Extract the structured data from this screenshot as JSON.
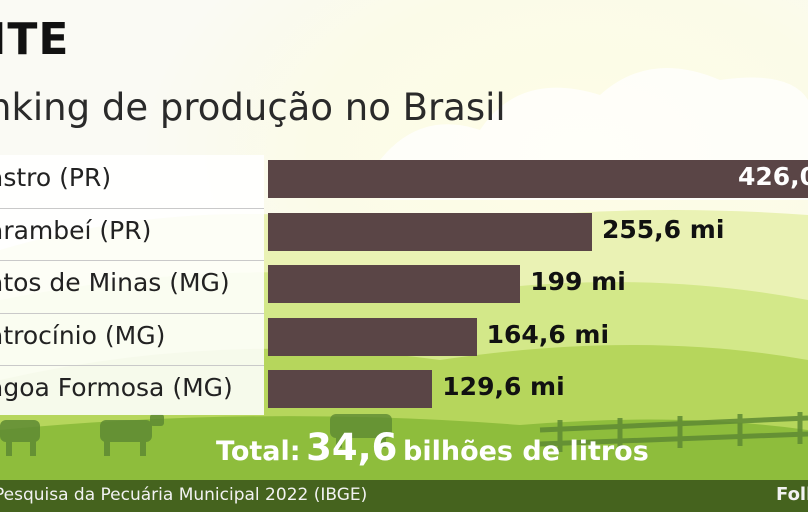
{
  "title": "ITE",
  "subtitle": "nking de produção no Brasil",
  "chart_data": {
    "type": "bar",
    "orientation": "horizontal",
    "categories": [
      "astro (PR)",
      "arambeí (PR)",
      "atos de Minas (MG)",
      "atrocínio (MG)",
      "agoa Formosa (MG)"
    ],
    "values": [
      426.0,
      255.6,
      199,
      164.6,
      129.6
    ],
    "value_labels": [
      "426,0",
      "255,6 mi",
      "199 mi",
      "164,6 mi",
      "129,6 mi"
    ],
    "unit": "mi",
    "xlim": [
      0,
      426.0
    ],
    "bar_color": "#5a4546"
  },
  "total": {
    "label": "Total:",
    "value": "34,6",
    "unit": "bilhões de litros"
  },
  "footer": {
    "source": "Pesquisa da Pecuária Municipal 2022 (IBGE)",
    "brand": "Foll"
  },
  "colors": {
    "footer_bg": "#45631e",
    "bar": "#5a4546",
    "sky": "#fbfae8",
    "grass_light": "#cde87a",
    "grass_dark": "#8ebd3c"
  }
}
